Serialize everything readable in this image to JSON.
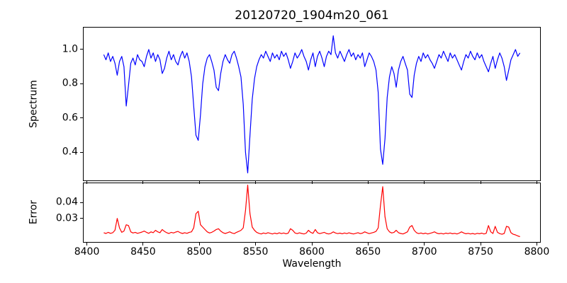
{
  "chart_data": {
    "type": "line",
    "title": "20120720_1904m20_061",
    "xlabel": "Wavelength",
    "xlim": [
      8396.5,
      8803.5
    ],
    "xticks": [
      8400,
      8450,
      8500,
      8550,
      8600,
      8650,
      8700,
      8750,
      8800
    ],
    "xtick_labels": [
      "8400",
      "8450",
      "8500",
      "8550",
      "8600",
      "8650",
      "8700",
      "8750",
      "8800"
    ],
    "x_start": 8415,
    "x_step": 2,
    "grid": false,
    "legend": "none",
    "panels": [
      {
        "name": "spectrum",
        "ylabel": "Spectrum",
        "line_color": "#0000ff",
        "ylim": [
          0.232,
          1.132
        ],
        "yticks": [
          1.0,
          0.8,
          0.6,
          0.4
        ],
        "ytick_labels": [
          "1.0",
          "0.8",
          "0.6",
          "0.4"
        ],
        "values": [
          0.97,
          0.94,
          0.98,
          0.93,
          0.96,
          0.92,
          0.85,
          0.93,
          0.96,
          0.9,
          0.67,
          0.79,
          0.92,
          0.95,
          0.91,
          0.97,
          0.94,
          0.93,
          0.9,
          0.96,
          1.0,
          0.95,
          0.98,
          0.93,
          0.97,
          0.94,
          0.86,
          0.89,
          0.95,
          0.99,
          0.94,
          0.97,
          0.93,
          0.91,
          0.96,
          0.99,
          0.95,
          0.98,
          0.93,
          0.84,
          0.67,
          0.5,
          0.47,
          0.62,
          0.8,
          0.9,
          0.95,
          0.97,
          0.93,
          0.88,
          0.78,
          0.76,
          0.86,
          0.93,
          0.97,
          0.94,
          0.92,
          0.97,
          0.99,
          0.95,
          0.9,
          0.84,
          0.68,
          0.4,
          0.28,
          0.5,
          0.71,
          0.83,
          0.9,
          0.94,
          0.97,
          0.95,
          0.99,
          0.96,
          0.93,
          0.98,
          0.95,
          0.97,
          0.94,
          0.99,
          0.96,
          0.98,
          0.94,
          0.89,
          0.93,
          0.98,
          0.95,
          0.97,
          1.0,
          0.96,
          0.93,
          0.88,
          0.94,
          0.98,
          0.9,
          0.96,
          0.99,
          0.95,
          0.9,
          0.96,
          0.99,
          0.97,
          1.08,
          0.98,
          0.95,
          0.99,
          0.96,
          0.93,
          0.97,
          1.0,
          0.96,
          0.98,
          0.94,
          0.97,
          0.95,
          0.98,
          0.9,
          0.94,
          0.98,
          0.96,
          0.93,
          0.88,
          0.75,
          0.42,
          0.33,
          0.48,
          0.72,
          0.84,
          0.9,
          0.86,
          0.78,
          0.88,
          0.93,
          0.96,
          0.92,
          0.88,
          0.74,
          0.72,
          0.85,
          0.92,
          0.96,
          0.93,
          0.98,
          0.95,
          0.97,
          0.94,
          0.92,
          0.89,
          0.93,
          0.97,
          0.95,
          0.99,
          0.96,
          0.93,
          0.98,
          0.95,
          0.97,
          0.94,
          0.91,
          0.88,
          0.93,
          0.97,
          0.95,
          0.99,
          0.96,
          0.94,
          0.98,
          0.95,
          0.97,
          0.93,
          0.9,
          0.87,
          0.92,
          0.96,
          0.89,
          0.94,
          0.98,
          0.95,
          0.9,
          0.82,
          0.88,
          0.94,
          0.97,
          1.0,
          0.96,
          0.98
        ]
      },
      {
        "name": "error",
        "ylabel": "Error",
        "line_color": "#ff0000",
        "ylim": [
          0.0147,
          0.0526
        ],
        "yticks": [
          0.04,
          0.03
        ],
        "ytick_labels": [
          "0.04",
          "0.03"
        ],
        "values": [
          0.021,
          0.0205,
          0.0212,
          0.0206,
          0.021,
          0.0225,
          0.03,
          0.024,
          0.0212,
          0.022,
          0.026,
          0.0255,
          0.0215,
          0.0208,
          0.0212,
          0.0206,
          0.021,
          0.0214,
          0.022,
          0.0212,
          0.0206,
          0.0215,
          0.021,
          0.0225,
          0.0215,
          0.021,
          0.023,
          0.0218,
          0.021,
          0.0205,
          0.0212,
          0.0208,
          0.0214,
          0.0218,
          0.021,
          0.0205,
          0.021,
          0.0206,
          0.0212,
          0.0215,
          0.024,
          0.033,
          0.0345,
          0.026,
          0.0245,
          0.023,
          0.0215,
          0.0208,
          0.0212,
          0.022,
          0.023,
          0.0235,
          0.022,
          0.021,
          0.0205,
          0.021,
          0.0215,
          0.0208,
          0.0204,
          0.0212,
          0.0218,
          0.0225,
          0.024,
          0.035,
          0.051,
          0.033,
          0.0245,
          0.0225,
          0.0212,
          0.0206,
          0.0202,
          0.0208,
          0.0204,
          0.021,
          0.0206,
          0.0202,
          0.0207,
          0.0203,
          0.0209,
          0.0204,
          0.0208,
          0.0203,
          0.0207,
          0.0235,
          0.0225,
          0.0208,
          0.0204,
          0.0209,
          0.0205,
          0.0202,
          0.0207,
          0.0225,
          0.0212,
          0.0206,
          0.023,
          0.021,
          0.0204,
          0.0208,
          0.0212,
          0.0205,
          0.0202,
          0.0206,
          0.0215,
          0.0208,
          0.0204,
          0.0207,
          0.0203,
          0.0208,
          0.0204,
          0.0209,
          0.0205,
          0.0202,
          0.0206,
          0.021,
          0.0204,
          0.0207,
          0.0215,
          0.0209,
          0.0204,
          0.0208,
          0.0212,
          0.0218,
          0.024,
          0.038,
          0.05,
          0.031,
          0.0235,
          0.0215,
          0.0208,
          0.0212,
          0.0225,
          0.021,
          0.0205,
          0.0202,
          0.0208,
          0.0215,
          0.0245,
          0.0255,
          0.0225,
          0.021,
          0.0204,
          0.0208,
          0.0203,
          0.0207,
          0.0202,
          0.0206,
          0.021,
          0.0215,
          0.0207,
          0.0203,
          0.0206,
          0.0202,
          0.0207,
          0.0204,
          0.0208,
          0.0203,
          0.0206,
          0.0202,
          0.0207,
          0.0215,
          0.0208,
          0.0203,
          0.0206,
          0.0202,
          0.0205,
          0.0201,
          0.0206,
          0.0203,
          0.0207,
          0.0202,
          0.0206,
          0.0255,
          0.0215,
          0.0205,
          0.025,
          0.0212,
          0.0204,
          0.02,
          0.0205,
          0.025,
          0.0245,
          0.021,
          0.02,
          0.0196,
          0.019,
          0.0185
        ]
      }
    ]
  }
}
